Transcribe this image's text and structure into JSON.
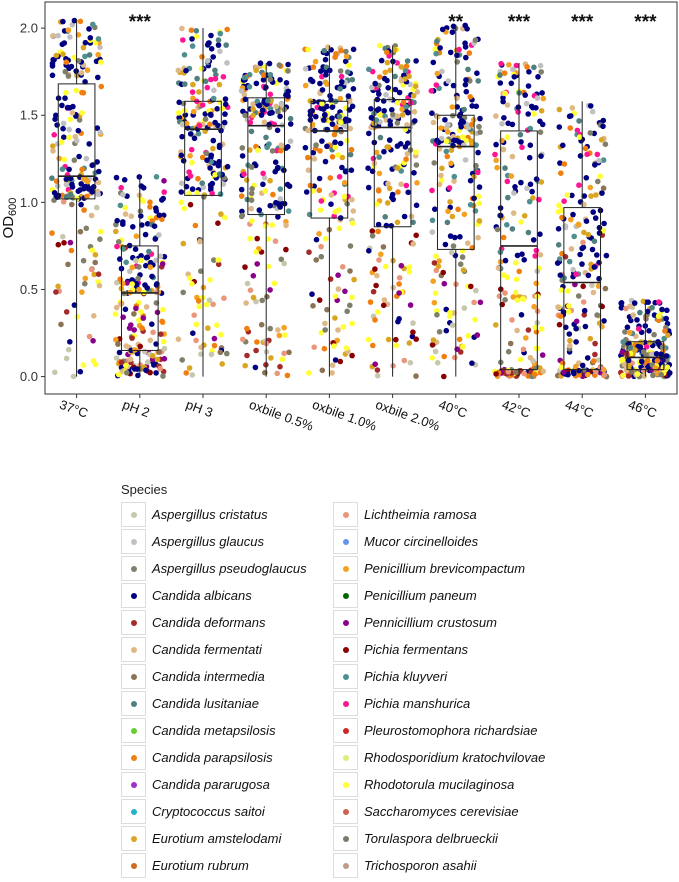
{
  "chart_data": {
    "type": "scatter",
    "subtype": "jitter-boxplot",
    "title": "",
    "xlabel": "",
    "ylabel": "OD",
    "ylabel_subscript": "600",
    "ylim": [
      -0.1,
      2.15
    ],
    "yticks": [
      "0.0",
      "0.5",
      "1.0",
      "1.5",
      "2.0"
    ],
    "grid": false,
    "legend_position": "bottom",
    "categories": [
      "37°C",
      "pH 2",
      "pH 3",
      "oxbile 0.5%",
      "oxbile 1.0%",
      "oxbile 2.0%",
      "40°C",
      "42°C",
      "44°C",
      "46°C"
    ],
    "significance": [
      "",
      "***",
      "",
      "",
      "",
      "",
      "**",
      "***",
      "***",
      "***"
    ],
    "boxes": [
      {
        "q1": 1.02,
        "median": 1.15,
        "q3": 1.68,
        "whisker_low": 0.0,
        "whisker_high": 2.05
      },
      {
        "q1": 0.15,
        "median": 0.48,
        "q3": 0.75,
        "whisker_low": 0.0,
        "whisker_high": 1.15
      },
      {
        "q1": 1.04,
        "median": 1.42,
        "q3": 1.58,
        "whisker_low": 0.0,
        "whisker_high": 2.0
      },
      {
        "q1": 0.93,
        "median": 1.44,
        "q3": 1.6,
        "whisker_low": 0.0,
        "whisker_high": 1.8
      },
      {
        "q1": 0.91,
        "median": 1.41,
        "q3": 1.58,
        "whisker_low": 0.0,
        "whisker_high": 1.9
      },
      {
        "q1": 0.86,
        "median": 1.43,
        "q3": 1.59,
        "whisker_low": 0.0,
        "whisker_high": 1.9
      },
      {
        "q1": 0.73,
        "median": 1.32,
        "q3": 1.5,
        "whisker_low": 0.0,
        "whisker_high": 2.02
      },
      {
        "q1": 0.04,
        "median": 0.75,
        "q3": 1.41,
        "whisker_low": 0.0,
        "whisker_high": 1.8
      },
      {
        "q1": 0.04,
        "median": 0.54,
        "q3": 0.97,
        "whisker_low": 0.0,
        "whisker_high": 1.58
      },
      {
        "q1": 0.04,
        "median": 0.11,
        "q3": 0.2,
        "whisker_low": 0.0,
        "whisker_high": 0.44
      }
    ],
    "legend_title": "Species",
    "series": [
      {
        "name": "Aspergillus cristatus",
        "color": "#c7c7ad"
      },
      {
        "name": "Aspergillus glaucus",
        "color": "#c0c0c0"
      },
      {
        "name": "Aspergillus pseudoglaucus",
        "color": "#7f7f6a"
      },
      {
        "name": "Candida albicans",
        "color": "#000080"
      },
      {
        "name": "Candida deformans",
        "color": "#a52a2a"
      },
      {
        "name": "Candida fermentati",
        "color": "#deb887"
      },
      {
        "name": "Candida intermedia",
        "color": "#8b7355"
      },
      {
        "name": "Candida lusitaniae",
        "color": "#4f7f7f"
      },
      {
        "name": "Candida metapsilosis",
        "color": "#66cc33"
      },
      {
        "name": "Candida parapsilosis",
        "color": "#f07f10"
      },
      {
        "name": "Candida pararugosa",
        "color": "#9932cc"
      },
      {
        "name": "Cryptococcus saitoi",
        "color": "#22b2cc"
      },
      {
        "name": "Eurotium amstelodami",
        "color": "#daa520"
      },
      {
        "name": "Eurotium rubrum",
        "color": "#d2691e"
      },
      {
        "name": "Lichtheimia ramosa",
        "color": "#e9967a"
      },
      {
        "name": "Mucor circinelloides",
        "color": "#6495ed"
      },
      {
        "name": "Penicillium brevicompactum",
        "color": "#f4a020"
      },
      {
        "name": "Penicillium paneum",
        "color": "#006400"
      },
      {
        "name": "Pennicillium crustosum",
        "color": "#8b008b"
      },
      {
        "name": "Pichia fermentans",
        "color": "#8b0000"
      },
      {
        "name": "Pichia kluyveri",
        "color": "#4f8f8f"
      },
      {
        "name": "Pichia manshurica",
        "color": "#ff1493"
      },
      {
        "name": "Pleurostomophora richardsiae",
        "color": "#cd2626"
      },
      {
        "name": "Rhodosporidium kratochvilovae",
        "color": "#d8f07a"
      },
      {
        "name": "Rhodotorula mucilaginosa",
        "color": "#ffff33"
      },
      {
        "name": "Saccharomyces cerevisiae",
        "color": "#cd6050"
      },
      {
        "name": "Torulaspora delbrueckii",
        "color": "#7a7a6a"
      },
      {
        "name": "Trichosporon asahii",
        "color": "#c09a8a"
      }
    ]
  }
}
